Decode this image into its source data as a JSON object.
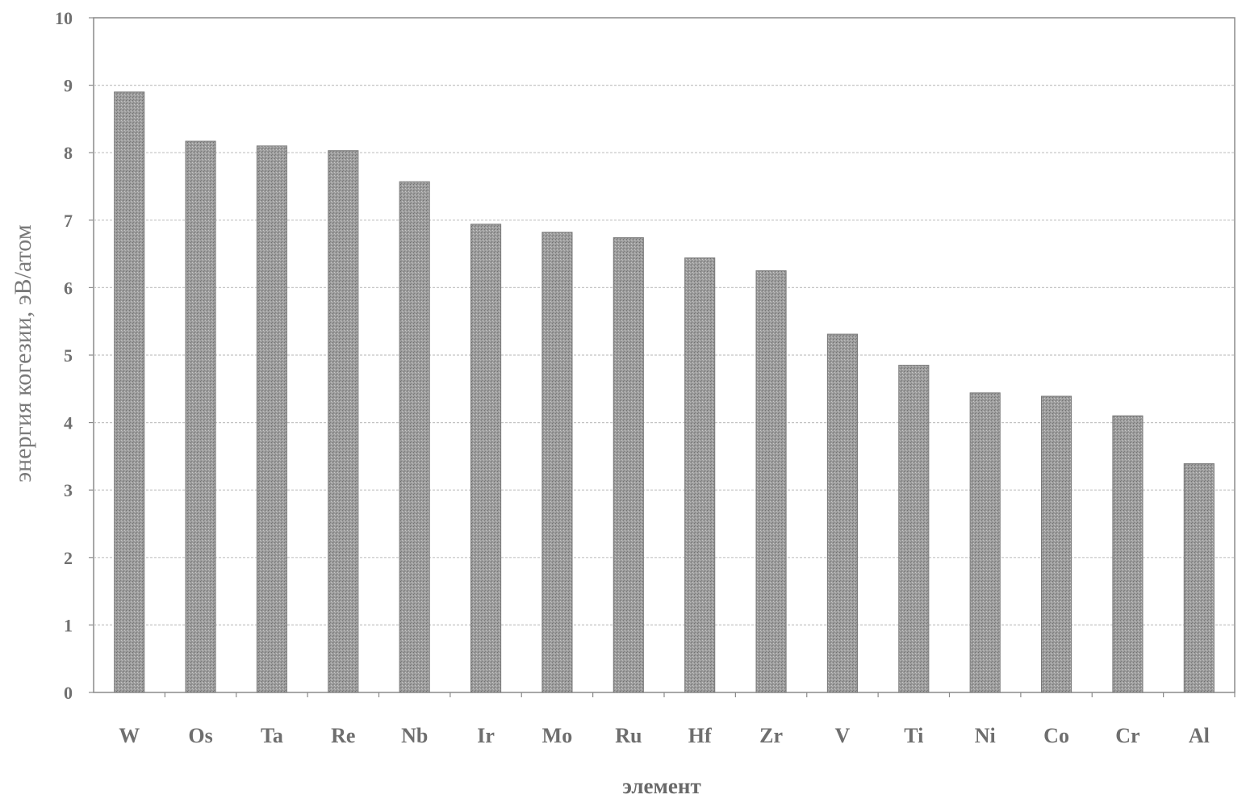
{
  "chart_data": {
    "type": "bar",
    "categories": [
      "W",
      "Os",
      "Ta",
      "Re",
      "Nb",
      "Ir",
      "Mo",
      "Ru",
      "Hf",
      "Zr",
      "V",
      "Ti",
      "Ni",
      "Co",
      "Cr",
      "Al"
    ],
    "values": [
      8.9,
      8.17,
      8.1,
      8.03,
      7.57,
      6.94,
      6.82,
      6.74,
      6.44,
      6.25,
      5.31,
      4.85,
      4.44,
      4.39,
      4.1,
      3.39
    ],
    "xlabel": "элемент",
    "ylabel": "энергия когезии, эВ/атом",
    "ylim": [
      0,
      10
    ],
    "yticks": [
      "0",
      "1",
      "2",
      "3",
      "4",
      "5",
      "6",
      "7",
      "8",
      "9",
      "10"
    ],
    "grid": true,
    "bar_color": "#9a9a9a",
    "grid_color": "#c4c4c4"
  }
}
